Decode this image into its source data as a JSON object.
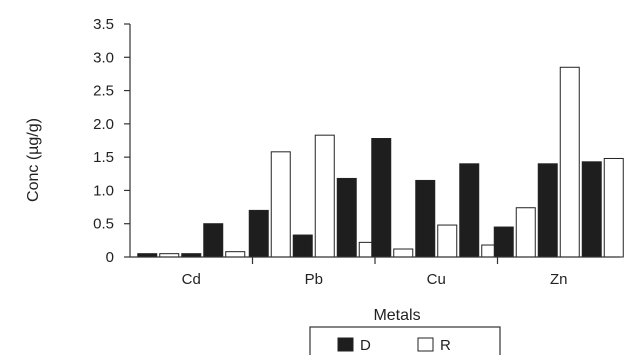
{
  "chart_data": {
    "type": "bar",
    "xlabel": "Metals",
    "ylabel": "Conc (µg/g)",
    "ylim": [
      0,
      3.5
    ],
    "yticks": [
      "0",
      "0.5",
      "1.0",
      "1.5",
      "2.0",
      "2.5",
      "3.0",
      "3.5"
    ],
    "yticks_values": [
      0,
      0.5,
      1.0,
      1.5,
      2.0,
      2.5,
      3.0,
      3.5
    ],
    "categories": [
      "Cd",
      "Pb",
      "Cu",
      "Zn"
    ],
    "legend_position": "bottom",
    "series_colors": {
      "D": "#1e1e1e",
      "R": "#ffffff"
    },
    "groups": [
      {
        "category": "Cd",
        "bars": [
          {
            "series": "D",
            "value": 0.05
          },
          {
            "series": "R",
            "value": 0.05
          },
          {
            "series": "D",
            "value": 0.05
          },
          {
            "series": "D",
            "value": 0.5
          },
          {
            "series": "R",
            "value": 0.08
          }
        ]
      },
      {
        "category": "Pb",
        "bars": [
          {
            "series": "D",
            "value": 0.7
          },
          {
            "series": "R",
            "value": 1.58
          },
          {
            "series": "D",
            "value": 0.33
          },
          {
            "series": "R",
            "value": 1.83
          },
          {
            "series": "D",
            "value": 1.18
          },
          {
            "series": "R",
            "value": 0.22
          }
        ]
      },
      {
        "category": "Cu",
        "bars": [
          {
            "series": "D",
            "value": 1.78
          },
          {
            "series": "R",
            "value": 0.12
          },
          {
            "series": "D",
            "value": 1.15
          },
          {
            "series": "R",
            "value": 0.48
          },
          {
            "series": "D",
            "value": 1.4
          },
          {
            "series": "R",
            "value": 0.18
          }
        ]
      },
      {
        "category": "Zn",
        "bars": [
          {
            "series": "D",
            "value": 0.45
          },
          {
            "series": "R",
            "value": 0.74
          },
          {
            "series": "D",
            "value": 1.4
          },
          {
            "series": "R",
            "value": 2.85
          },
          {
            "series": "D",
            "value": 1.43
          },
          {
            "series": "R",
            "value": 1.48
          }
        ]
      }
    ],
    "legend": [
      {
        "series": "D",
        "label": "D"
      },
      {
        "series": "R",
        "label": "R"
      }
    ]
  }
}
